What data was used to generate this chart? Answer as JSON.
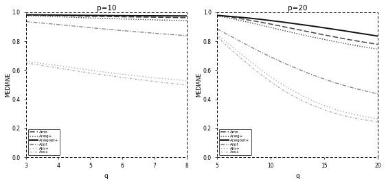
{
  "left": {
    "title": "p=10",
    "xlabel": "q",
    "ylabel": "MEDIANE",
    "xlim": [
      3,
      8
    ],
    "ylim": [
      0.0,
      1.0
    ],
    "xticks": [
      3,
      4,
      5,
      6,
      7,
      8
    ],
    "yticks": [
      0.0,
      0.2,
      0.4,
      0.6,
      0.8,
      1.0
    ],
    "q": [
      3,
      4,
      5,
      6,
      7,
      8
    ],
    "series": {
      "Arno": [
        0.98,
        0.977,
        0.972,
        0.968,
        0.965,
        0.962
      ],
      "Acwg+": [
        0.975,
        0.968,
        0.96,
        0.953,
        0.947,
        0.942
      ],
      "Acwgopt+": [
        0.982,
        0.98,
        0.978,
        0.976,
        0.975,
        0.974
      ],
      "Aopt": [
        0.935,
        0.915,
        0.893,
        0.873,
        0.855,
        0.838
      ],
      "Aks+": [
        0.66,
        0.632,
        0.6,
        0.572,
        0.548,
        0.528
      ],
      "Ass+": [
        0.65,
        0.615,
        0.58,
        0.55,
        0.522,
        0.498
      ]
    }
  },
  "right": {
    "title": "p=20",
    "xlabel": "q",
    "ylabel": "MEDIANE",
    "xlim": [
      5,
      20
    ],
    "ylim": [
      0.0,
      1.0
    ],
    "xticks": [
      5,
      10,
      15,
      20
    ],
    "yticks": [
      0.0,
      0.2,
      0.4,
      0.6,
      0.8,
      1.0
    ],
    "q": [
      5,
      6,
      7,
      8,
      9,
      10,
      11,
      12,
      13,
      14,
      15,
      16,
      17,
      18,
      19,
      20
    ],
    "series": {
      "Arno": [
        0.978,
        0.968,
        0.957,
        0.945,
        0.932,
        0.918,
        0.903,
        0.888,
        0.873,
        0.858,
        0.843,
        0.829,
        0.815,
        0.802,
        0.79,
        0.778
      ],
      "Acwg+": [
        0.974,
        0.96,
        0.945,
        0.929,
        0.912,
        0.895,
        0.877,
        0.86,
        0.843,
        0.827,
        0.812,
        0.797,
        0.783,
        0.769,
        0.757,
        0.745
      ],
      "Acwgopt+": [
        0.978,
        0.972,
        0.966,
        0.959,
        0.951,
        0.942,
        0.933,
        0.923,
        0.913,
        0.903,
        0.892,
        0.881,
        0.87,
        0.858,
        0.847,
        0.835
      ],
      "Aopt": [
        0.885,
        0.845,
        0.805,
        0.766,
        0.728,
        0.692,
        0.657,
        0.625,
        0.594,
        0.565,
        0.539,
        0.514,
        0.492,
        0.472,
        0.454,
        0.437
      ],
      "Aks+": [
        0.845,
        0.785,
        0.725,
        0.665,
        0.608,
        0.555,
        0.506,
        0.462,
        0.422,
        0.387,
        0.357,
        0.331,
        0.31,
        0.292,
        0.277,
        0.265
      ],
      "Ass+": [
        0.83,
        0.762,
        0.697,
        0.634,
        0.575,
        0.52,
        0.47,
        0.426,
        0.388,
        0.355,
        0.327,
        0.303,
        0.284,
        0.268,
        0.255,
        0.245
      ]
    }
  },
  "line_styles": {
    "Arno": {
      "color": "#444444",
      "linestyle": "--",
      "linewidth": 1.1,
      "dashes": [
        5,
        2
      ]
    },
    "Acwg+": {
      "color": "#444444",
      "linestyle": ":",
      "linewidth": 1.0,
      "dashes": [
        1,
        1.5
      ]
    },
    "Acwgopt+": {
      "color": "#111111",
      "linestyle": "-",
      "linewidth": 1.4,
      "dashes": null
    },
    "Aopt": {
      "color": "#888888",
      "linestyle": "-.",
      "linewidth": 1.0,
      "dashes": [
        4,
        1.5,
        1,
        1.5
      ]
    },
    "Aks+": {
      "color": "#aaaaaa",
      "linestyle": ":",
      "linewidth": 1.0,
      "dashes": [
        1,
        2
      ]
    },
    "Ass+": {
      "color": "#aaaaaa",
      "linestyle": "--",
      "linewidth": 1.0,
      "dashes": [
        2,
        1.5,
        0.5,
        1.5
      ]
    }
  },
  "legend_order": [
    "Arno",
    "Acwg+",
    "Acwgopt+",
    "Aopt",
    "Aks+",
    "Ass+"
  ],
  "bg_color": "#ffffff"
}
